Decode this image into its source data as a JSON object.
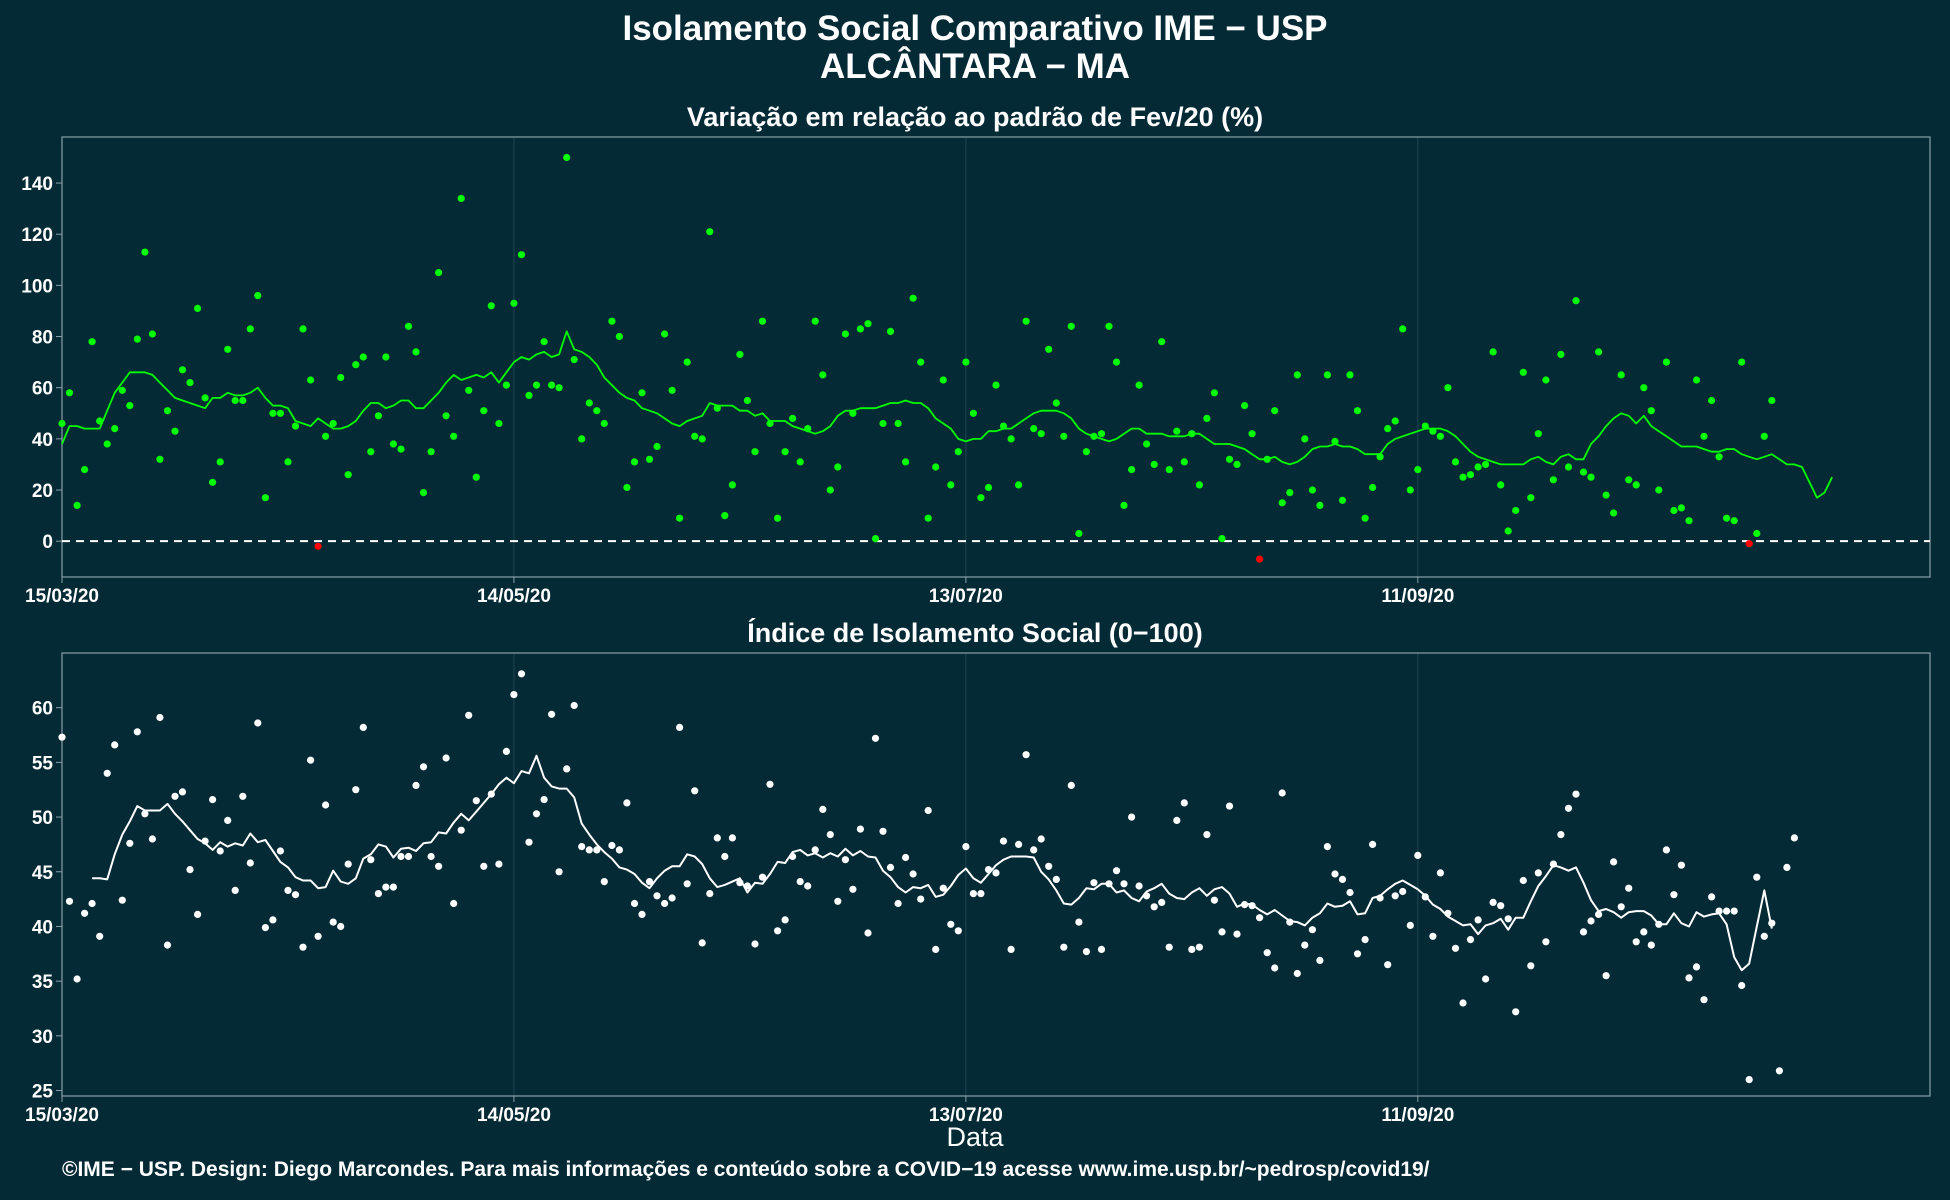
{
  "header": {
    "title_line1": "Isolamento Social Comparativo IME − USP",
    "title_line2": "ALCÂNTARA − MA"
  },
  "footer": {
    "credit": "©IME − USP. Design: Diego Marcondes. Para mais informações e conteúdo sobre a COVID−19 acesse www.ime.usp.br/~pedrosp/covid19/"
  },
  "colors": {
    "background": "#042a36",
    "panel_border": "#8aa0a8",
    "grid": "#1e4650",
    "positive_points": "#00ff00",
    "negative_points": "#ff0000",
    "index_points": "#ffffff",
    "zero_line": "#ffffff"
  },
  "chart_data": [
    {
      "type": "scatter",
      "title": "Variação em relação ao padrão de Fev/20 (%)",
      "xlabel": "",
      "ylabel": "",
      "x_range": [
        "2020-03-15",
        "2020-11-18"
      ],
      "ylim": [
        -14,
        158
      ],
      "x_ticks": [
        {
          "date": "2020-03-15",
          "label": "15/03/20"
        },
        {
          "date": "2020-05-14",
          "label": "14/05/20"
        },
        {
          "date": "2020-07-13",
          "label": "13/07/20"
        },
        {
          "date": "2020-09-11",
          "label": "11/09/20"
        }
      ],
      "y_ticks": [
        0,
        20,
        40,
        60,
        80,
        100,
        120,
        140
      ],
      "reference_line": {
        "y": 0,
        "style": "dashed"
      },
      "series": [
        {
          "kind": "points",
          "start_date": "2020-03-15",
          "values": [
            46,
            58,
            14,
            28,
            78,
            47,
            38,
            44,
            59,
            53,
            79,
            113,
            81,
            32,
            51,
            43,
            67,
            62,
            91,
            56,
            23,
            31,
            75,
            55,
            55,
            83,
            96,
            17,
            50,
            50,
            31,
            45,
            83,
            63,
            -2,
            41,
            46,
            64,
            26,
            69,
            72,
            35,
            49,
            72,
            38,
            36,
            84,
            74,
            19,
            35,
            105,
            49,
            41,
            134,
            59,
            25,
            51,
            92,
            46,
            61,
            93,
            112,
            57,
            61,
            78,
            61,
            60,
            150,
            71,
            40,
            54,
            51,
            46,
            86,
            80,
            21,
            31,
            58,
            32,
            37,
            81,
            59,
            9,
            70,
            41,
            40,
            121,
            52,
            10,
            22,
            73,
            55,
            35,
            86,
            46,
            9,
            35,
            48,
            31,
            44,
            86,
            65,
            20,
            29,
            81,
            50,
            83,
            85,
            1,
            46,
            82,
            46,
            31,
            95,
            70,
            9,
            29,
            63,
            22,
            35,
            70,
            50,
            17,
            21,
            61,
            45,
            40,
            22,
            86,
            44,
            42,
            75,
            54,
            41,
            84,
            3,
            35,
            41,
            42,
            84,
            70,
            14,
            28,
            61,
            38,
            30,
            78,
            28,
            43,
            31,
            42,
            22,
            48,
            58,
            1,
            32,
            30,
            53,
            42,
            -7,
            32,
            51,
            15,
            19,
            65,
            40,
            20,
            14,
            65,
            39,
            16,
            65,
            51,
            9,
            21,
            33,
            44,
            47,
            83,
            20,
            28,
            45,
            43,
            41,
            60,
            31,
            25,
            26,
            29,
            30,
            74,
            22,
            4,
            12,
            66,
            17,
            42,
            63,
            24,
            73,
            29,
            94,
            27,
            25,
            74,
            18,
            11,
            65,
            24,
            22,
            60,
            51,
            20,
            70,
            12,
            13,
            8,
            63,
            41,
            55,
            33,
            9,
            8,
            70,
            -1,
            3,
            41,
            55
          ]
        },
        {
          "kind": "moving_average",
          "start_date": "2020-03-15",
          "values": [
            38,
            45,
            45,
            44,
            44,
            44,
            51,
            58,
            62,
            66,
            66,
            66,
            65,
            62,
            59,
            56,
            55,
            54,
            53,
            52,
            56,
            56,
            58,
            57,
            57,
            58,
            60,
            56,
            53,
            53,
            52,
            47,
            46,
            45,
            48,
            46,
            44,
            44,
            45,
            47,
            51,
            54,
            54,
            52,
            53,
            55,
            55,
            52,
            52,
            55,
            58,
            62,
            65,
            63,
            64,
            65,
            64,
            66,
            62,
            66,
            70,
            72,
            71,
            73,
            74,
            72,
            73,
            82,
            75,
            74,
            72,
            69,
            64,
            61,
            58,
            56,
            55,
            52,
            51,
            50,
            48,
            46,
            45,
            47,
            48,
            49,
            54,
            53,
            53,
            53,
            51,
            51,
            49,
            50,
            47,
            47,
            47,
            45,
            44,
            43,
            42,
            43,
            45,
            49,
            51,
            51,
            52,
            52,
            52,
            53,
            54,
            54,
            55,
            54,
            54,
            52,
            48,
            46,
            44,
            40,
            39,
            40,
            40,
            43,
            43,
            44,
            44,
            46,
            48,
            50,
            51,
            51,
            51,
            50,
            48,
            44,
            42,
            41,
            40,
            39,
            40,
            42,
            44,
            44,
            42,
            42,
            42,
            41,
            41,
            41,
            42,
            42,
            40,
            38,
            38,
            38,
            37,
            36,
            34,
            32,
            32,
            33,
            31,
            30,
            31,
            33,
            36,
            37,
            37,
            38,
            37,
            37,
            36,
            34,
            34,
            34,
            38,
            40,
            41,
            42,
            43,
            44,
            44,
            44,
            43,
            41,
            38,
            35,
            33,
            32,
            31,
            30,
            30,
            30,
            30,
            32,
            33,
            31,
            30,
            33,
            34,
            32,
            32,
            38,
            41,
            45,
            48,
            50,
            49,
            46,
            49,
            45,
            43,
            41,
            39,
            37,
            37,
            37,
            36,
            35,
            35,
            36,
            36,
            34,
            33,
            32,
            33,
            34,
            32,
            30,
            30,
            29,
            23,
            17,
            19,
            25
          ]
        }
      ]
    },
    {
      "type": "scatter",
      "title": "Índice de Isolamento Social (0−100)",
      "xlabel": "Data",
      "ylabel": "",
      "x_range": [
        "2020-03-15",
        "2020-11-18"
      ],
      "ylim": [
        24.5,
        65
      ],
      "x_ticks": [
        {
          "date": "2020-03-15",
          "label": "15/03/20"
        },
        {
          "date": "2020-05-14",
          "label": "14/05/20"
        },
        {
          "date": "2020-07-13",
          "label": "13/07/20"
        },
        {
          "date": "2020-09-11",
          "label": "11/09/20"
        }
      ],
      "y_ticks": [
        25,
        30,
        35,
        40,
        45,
        50,
        55,
        60
      ],
      "series": [
        {
          "kind": "points",
          "start_date": "2020-03-15",
          "values": [
            57.3,
            42.3,
            35.2,
            41.2,
            42.1,
            39.1,
            54.0,
            56.6,
            42.4,
            47.6,
            57.8,
            50.3,
            48.0,
            59.1,
            38.3,
            51.9,
            52.3,
            45.2,
            41.1,
            47.8,
            51.6,
            46.9,
            49.7,
            43.3,
            51.9,
            45.8,
            58.6,
            39.9,
            40.6,
            46.9,
            43.3,
            42.9,
            38.1,
            55.2,
            39.1,
            51.1,
            40.4,
            40.0,
            45.7,
            52.5,
            58.2,
            46.1,
            43.0,
            43.6,
            43.6,
            46.4,
            46.4,
            52.9,
            54.6,
            46.4,
            45.5,
            55.4,
            42.1,
            48.8,
            59.3,
            51.5,
            45.5,
            52.1,
            45.7,
            56.0,
            61.2,
            63.1,
            47.7,
            50.3,
            51.6,
            59.4,
            45.0,
            54.4,
            60.2,
            47.3,
            47.0,
            47.0,
            44.1,
            47.4,
            47.0,
            51.3,
            42.1,
            41.1,
            44.1,
            42.8,
            42.1,
            42.6,
            58.2,
            43.9,
            52.4,
            38.5,
            43.0,
            48.1,
            46.4,
            48.1,
            44.0,
            43.7,
            38.4,
            44.5,
            53.0,
            39.6,
            40.6,
            46.4,
            44.1,
            43.7,
            47.0,
            50.7,
            48.4,
            42.3,
            46.1,
            43.4,
            48.9,
            39.4,
            57.2,
            48.7,
            45.4,
            42.1,
            46.3,
            44.8,
            42.5,
            50.6,
            37.9,
            43.5,
            40.2,
            39.6,
            47.3,
            43.0,
            43.0,
            45.2,
            44.9,
            47.8,
            37.9,
            47.5,
            55.7,
            47.0,
            48.0,
            45.5,
            44.3,
            38.1,
            52.9,
            40.4,
            37.7,
            44.0,
            37.9,
            43.9,
            45.1,
            43.9,
            50.0,
            43.7,
            42.8,
            41.8,
            42.2,
            38.1,
            49.7,
            51.3,
            37.9,
            38.1,
            48.4,
            42.4,
            39.5,
            51.0,
            39.3,
            42.0,
            41.9,
            40.8,
            37.6,
            36.2,
            52.2,
            40.4,
            35.7,
            38.3,
            39.7,
            36.9,
            47.3,
            44.8,
            44.3,
            43.1,
            37.5,
            38.8,
            47.5,
            42.6,
            36.5,
            42.8,
            43.2,
            40.1,
            46.5,
            42.7,
            39.1,
            44.9,
            41.2,
            38.0,
            33.0,
            38.8,
            40.6,
            35.2,
            42.2,
            41.9,
            40.7,
            32.2,
            44.2,
            36.4,
            44.9,
            38.6,
            45.7,
            48.4,
            50.8,
            52.1,
            39.5,
            40.5,
            41.1,
            35.5,
            45.9,
            41.8,
            43.5,
            38.6,
            39.5,
            38.3,
            40.2,
            47.0,
            42.9,
            45.6,
            35.3,
            36.3,
            33.3,
            42.7,
            41.4,
            41.4,
            41.4,
            34.6,
            26.0,
            44.5,
            39.1,
            40.3,
            26.8,
            45.4,
            48.1
          ]
        },
        {
          "kind": "moving_average",
          "start_date": "2020-03-19",
          "values": [
            44.4,
            44.4,
            44.3,
            46.6,
            48.4,
            49.6,
            51.0,
            50.6,
            50.6,
            50.6,
            51.2,
            50.3,
            49.6,
            48.8,
            48.0,
            47.6,
            47.0,
            47.7,
            47.3,
            47.6,
            47.4,
            48.5,
            47.7,
            47.9,
            46.9,
            45.9,
            45.4,
            44.5,
            44.2,
            44.2,
            43.5,
            43.6,
            45.1,
            44.1,
            43.9,
            44.4,
            46.2,
            46.6,
            47.5,
            47.3,
            46.3,
            47.1,
            47.2,
            46.9,
            47.6,
            47.7,
            48.6,
            48.5,
            49.5,
            50.3,
            49.7,
            50.5,
            51.3,
            52.1,
            53.0,
            53.6,
            53.1,
            54.2,
            54.0,
            55.6,
            53.6,
            52.8,
            52.6,
            52.6,
            51.8,
            49.4,
            48.4,
            47.5,
            46.8,
            46.2,
            45.4,
            45.2,
            44.8,
            44.0,
            43.5,
            44.4,
            45.1,
            45.5,
            45.5,
            46.6,
            46.4,
            45.7,
            44.4,
            43.6,
            43.8,
            44.1,
            44.4,
            43.1,
            44.0,
            43.9,
            44.8,
            45.9,
            45.8,
            46.8,
            47.0,
            46.5,
            46.7,
            46.3,
            46.7,
            46.4,
            47.1,
            46.5,
            46.9,
            46.4,
            46.3,
            45.1,
            44.5,
            43.6,
            43.1,
            43.6,
            43.5,
            43.8,
            42.7,
            42.9,
            43.7,
            44.7,
            45.3,
            44.4,
            44.0,
            44.8,
            45.6,
            46.1,
            46.4,
            46.4,
            46.4,
            46.3,
            45.0,
            44.3,
            43.3,
            42.1,
            42.0,
            42.6,
            43.5,
            43.4,
            43.9,
            43.9,
            43.1,
            43.3,
            42.6,
            42.3,
            43.2,
            43.5,
            43.9,
            43.0,
            42.6,
            42.5,
            43.1,
            43.5,
            42.8,
            43.4,
            43.6,
            43.0,
            41.8,
            42.1,
            42.0,
            41.5,
            41.1,
            41.5,
            41.0,
            40.5,
            40.4,
            40.1,
            40.8,
            41.2,
            42.1,
            41.8,
            41.9,
            42.3,
            41.1,
            41.2,
            42.6,
            42.8,
            43.4,
            43.9,
            44.2,
            43.8,
            43.4,
            42.8,
            42.0,
            41.6,
            40.9,
            40.5,
            40.1,
            40.2,
            39.3,
            40.1,
            40.3,
            40.7,
            39.7,
            40.8,
            40.8,
            42.3,
            43.7,
            44.6,
            45.6,
            45.4,
            45.1,
            45.4,
            44.0,
            42.4,
            41.4,
            41.6,
            41.3,
            40.8,
            41.3,
            41.4,
            41.4,
            41.0,
            40.2,
            40.2,
            41.2,
            40.3,
            40.0,
            41.3,
            40.9,
            41.1,
            41.2,
            40.2,
            37.2,
            36.0,
            36.6,
            40.0,
            43.3,
            39.8
          ]
        }
      ]
    }
  ]
}
